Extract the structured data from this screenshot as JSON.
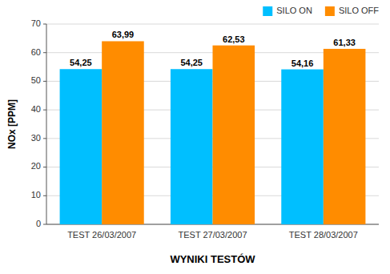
{
  "chart_data": {
    "type": "bar",
    "categories": [
      "TEST 26/03/2007",
      "TEST 27/03/2007",
      "TEST 28/03/2007"
    ],
    "series": [
      {
        "name": "SILO ON",
        "color": "#00BFFF",
        "values": [
          54.25,
          54.25,
          54.16
        ],
        "value_labels": [
          "54,25",
          "54,25",
          "54,16"
        ]
      },
      {
        "name": "SILO OFF",
        "color": "#FF8C00",
        "values": [
          63.99,
          62.53,
          61.33
        ],
        "value_labels": [
          "63,99",
          "62,53",
          "61,33"
        ]
      }
    ],
    "xlabel": "WYNIKI TESTÓW",
    "ylabel": "NOx [PPM]",
    "ylim": [
      0,
      70
    ],
    "yticks": [
      0,
      10,
      20,
      30,
      40,
      50,
      60,
      70
    ],
    "grid": true,
    "legend": "upper right",
    "data_labels": true
  }
}
